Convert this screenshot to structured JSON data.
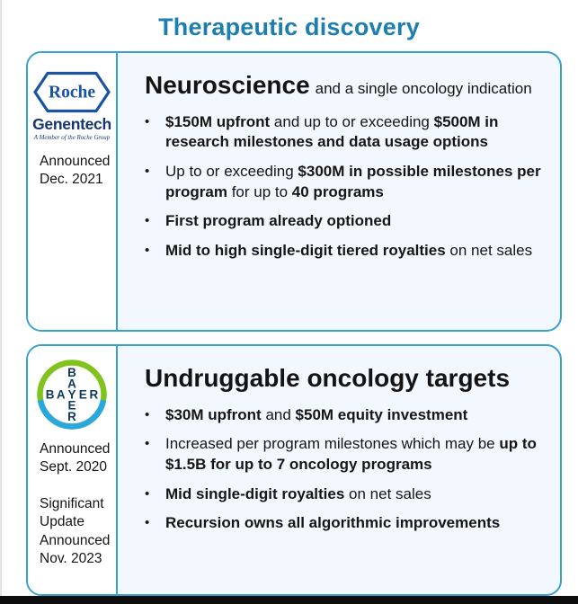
{
  "page": {
    "title": "Therapeutic discovery",
    "colors": {
      "accent_border": "#38A1CE",
      "title_text": "#1D7EB0",
      "card_fill": "#F2F8FD",
      "roche_blue": "#1A53A0",
      "genentech_navy": "#15366F",
      "bayer_green": "#7FC31C",
      "bayer_blue": "#2AA7DE",
      "bayer_navy": "#10395C",
      "bottom_bar": "#0D0D0D"
    }
  },
  "cards": [
    {
      "id": "roche",
      "logo": {
        "roche_text": "Roche",
        "genentech_text": "Genentech",
        "tagline": "A Member of the Roche Group"
      },
      "notes": [
        "Announced Dec. 2021"
      ],
      "heading": "Neuroscience",
      "heading_suffix": "and a single oncology indication",
      "bullets": [
        [
          {
            "t": "$150M upfront",
            "b": 1
          },
          {
            "t": " and up to or exceeding ",
            "b": 0
          },
          {
            "t": "$500M in research milestones and data usage options",
            "b": 1
          }
        ],
        [
          {
            "t": "Up to or exceeding ",
            "b": 0
          },
          {
            "t": "$300M in possible milestones per program",
            "b": 1
          },
          {
            "t": " for up to ",
            "b": 0
          },
          {
            "t": "40 programs",
            "b": 1
          }
        ],
        [
          {
            "t": "First program already optioned",
            "b": 1
          }
        ],
        [
          {
            "t": "Mid to high single-digit tiered royalties",
            "b": 1
          },
          {
            "t": " on net sales",
            "b": 0
          }
        ]
      ]
    },
    {
      "id": "bayer",
      "logo": {
        "bayer_letters": "BAYER"
      },
      "notes": [
        "Announced Sept. 2020",
        "Significant Update Announced Nov. 2023"
      ],
      "heading": "Undruggable oncology targets",
      "heading_suffix": "",
      "bullets": [
        [
          {
            "t": "$30M upfront",
            "b": 1
          },
          {
            "t": " and ",
            "b": 0
          },
          {
            "t": "$50M equity investment",
            "b": 1
          }
        ],
        [
          {
            "t": "Increased per program milestones which may be ",
            "b": 0
          },
          {
            "t": "up to $1.5B for up to 7 oncology programs",
            "b": 1
          }
        ],
        [
          {
            "t": "Mid single-digit royalties",
            "b": 1
          },
          {
            "t": " on net sales",
            "b": 0
          }
        ],
        [
          {
            "t": "Recursion owns all algorithmic improvements",
            "b": 1
          }
        ]
      ]
    }
  ]
}
